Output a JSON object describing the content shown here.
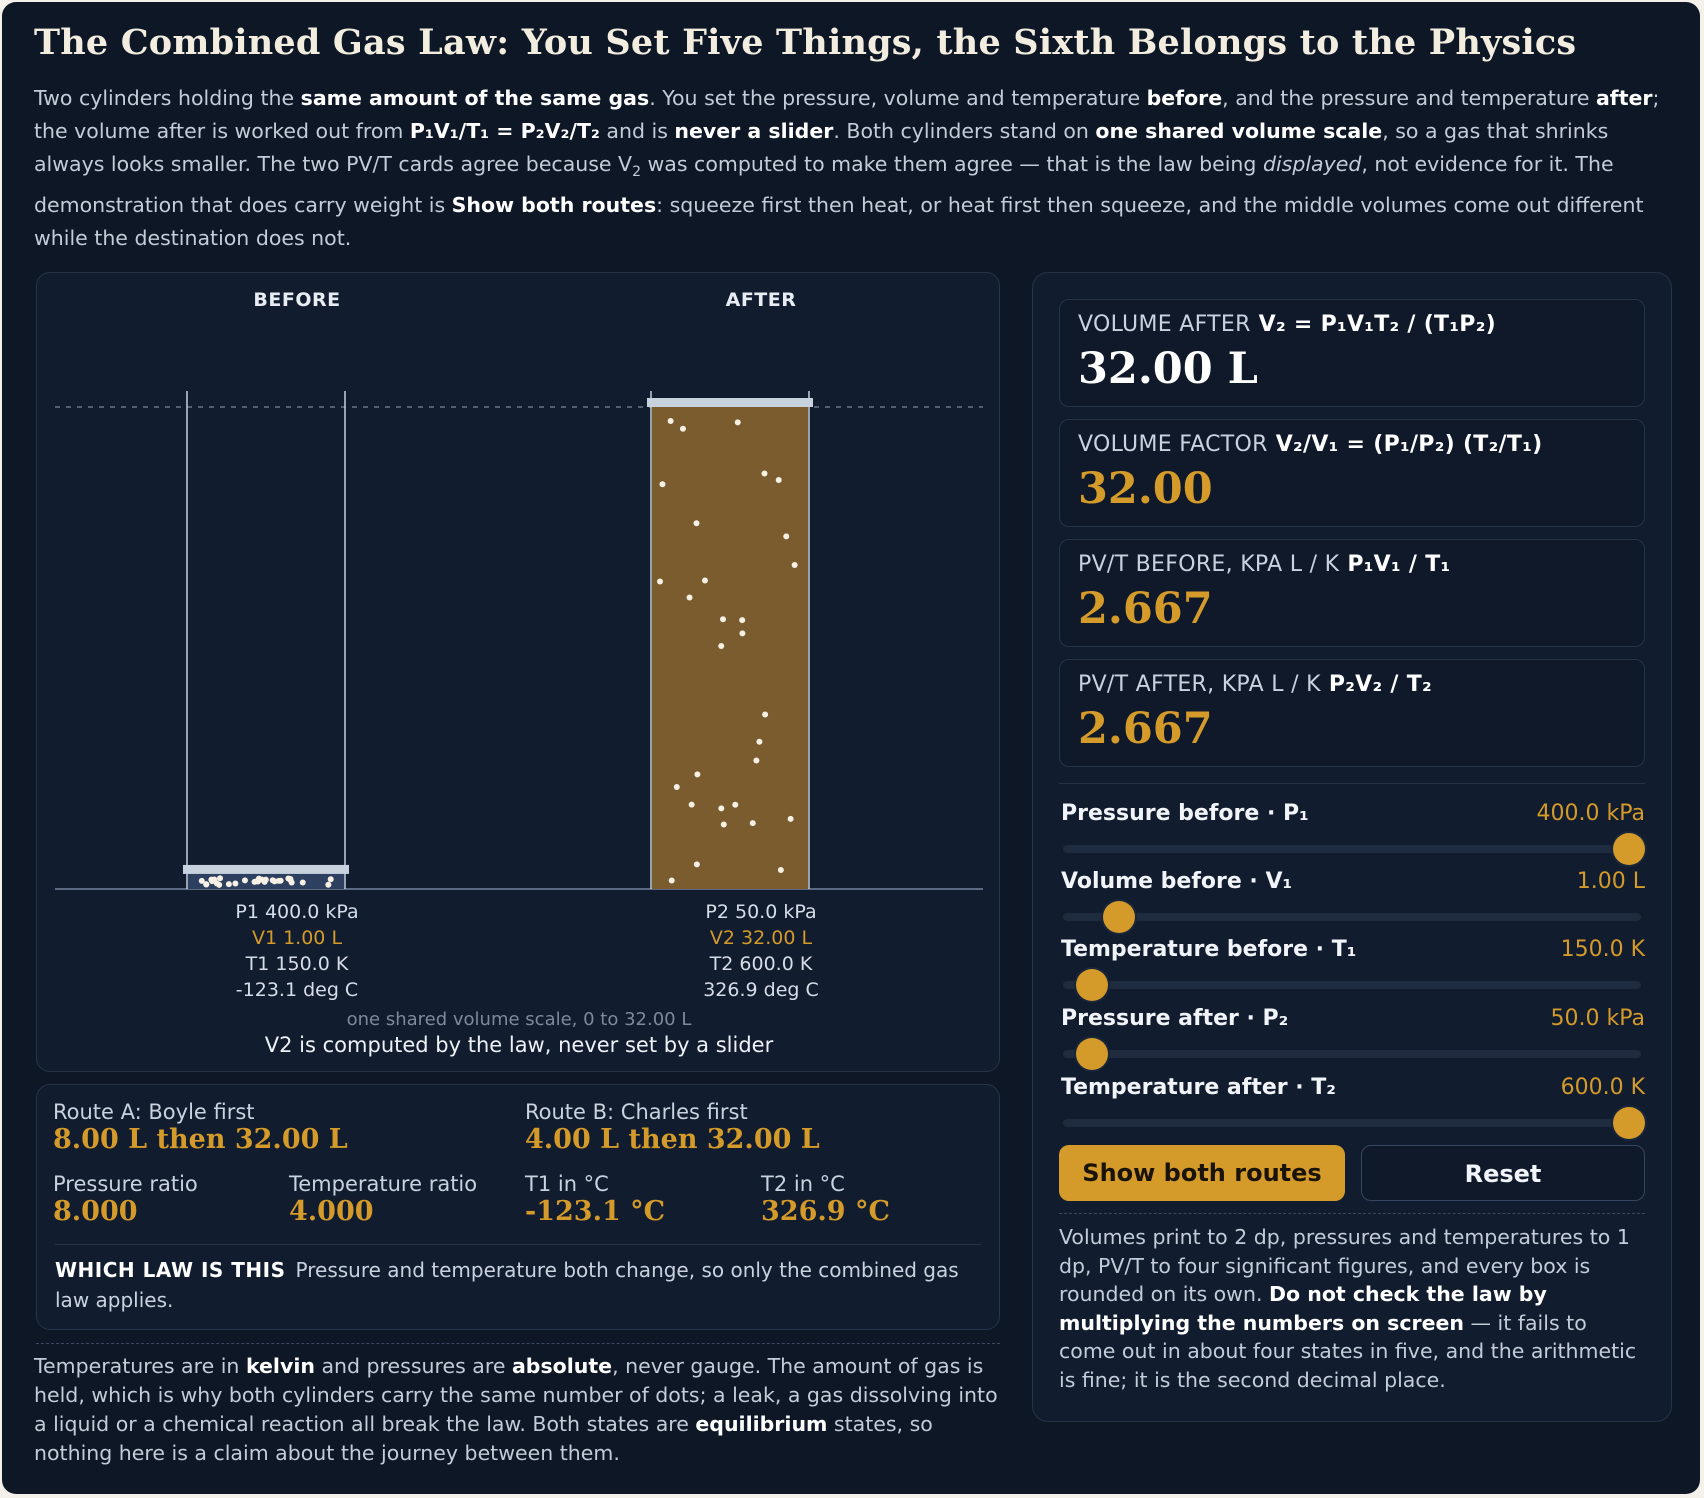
{
  "title": "The Combined Gas Law: You Set Five Things, the Sixth Belongs to the Physics",
  "intro": {
    "t1": "Two cylinders holding the ",
    "b1": "same amount of the same gas",
    "t2": ". You set the pressure, volume and temperature ",
    "b2": "before",
    "t3": ", and the pressure and temperature ",
    "b3": "after",
    "t4": "; the volume after is worked out from ",
    "formula": "P₁V₁/T₁ = P₂V₂/T₂",
    "t5": " and is ",
    "b4": "never a slider",
    "t6": ". Both cylinders stand on ",
    "b5": "one shared volume scale",
    "t7": ", so a gas that shrinks always looks smaller. The two PV/T cards agree because V",
    "sub2": "2",
    "t8": " was computed to make them agree — that is the law being ",
    "i1": "displayed",
    "t9": ", not evidence for it. The demonstration that does carry weight is ",
    "b6": "Show both routes",
    "t10": ": squeeze first then heat, or heat first then squeeze, and the middle volumes come out different while the destination does not."
  },
  "stage": {
    "before_label": "BEFORE",
    "after_label": "AFTER",
    "before": {
      "p": "P1 400.0 kPa",
      "v": "V1 1.00 L",
      "t": "T1 150.0 K",
      "c": "-123.1 deg C",
      "volume_L": 1.0,
      "particles": 30
    },
    "after": {
      "p": "P2 50.0 kPa",
      "v": "V2 32.00 L",
      "t": "T2 600.0 K",
      "c": "326.9 deg C",
      "volume_L": 32.0,
      "particles": 30
    },
    "scale_max_L": 32.0,
    "scale_note": "one shared volume scale, 0 to 32.00 L",
    "never_note": "V2 is computed by the law, never set by a slider"
  },
  "routes": {
    "a_label": "Route A: Boyle first",
    "a_value": "8.00 L then 32.00 L",
    "b_label": "Route B: Charles first",
    "b_value": "4.00 L then 32.00 L",
    "pr_label": "Pressure ratio",
    "pr_value": "8.000",
    "tr_label": "Temperature ratio",
    "tr_value": "4.000",
    "t1_label": "T1 in °C",
    "t1_value": "-123.1 °C",
    "t2_label": "T2 in °C",
    "t2_value": "326.9 °C",
    "which_head": "WHICH LAW IS THIS",
    "which_text": "Pressure and temperature both change, so only the combined gas law applies."
  },
  "footer": {
    "t1": "Temperatures are in ",
    "b1": "kelvin",
    "t2": " and pressures are ",
    "b2": "absolute",
    "t3": ", never gauge. The amount of gas is held, which is why both cylinders carry the same number of dots; a leak, a gas dissolving into a liquid or a chemical reaction all break the law. Both states are ",
    "b3": "equilibrium",
    "t4": " states, so nothing here is a claim about the journey between them."
  },
  "cards": [
    {
      "title": "VOLUME AFTER",
      "formula": "V₂ = P₁V₁T₂ / (T₁P₂)",
      "value": "32.00 L",
      "style": "white"
    },
    {
      "title": "VOLUME FACTOR",
      "formula": "V₂/V₁ = (P₁/P₂) (T₂/T₁)",
      "value": "32.00",
      "style": "gold"
    },
    {
      "title": "PV/T BEFORE, KPA L / K",
      "formula": "P₁V₁ / T₁",
      "value": "2.667",
      "style": "gold"
    },
    {
      "title": "PV/T AFTER, KPA L / K",
      "formula": "P₂V₂ / T₂",
      "value": "2.667",
      "style": "gold"
    }
  ],
  "sliders": [
    {
      "label": "Pressure before · P₁",
      "value": "400.0 kPa",
      "level": 1.0
    },
    {
      "label": "Volume before · V₁",
      "value": "1.00 L",
      "level": 0.08
    },
    {
      "label": "Temperature before · T₁",
      "value": "150.0 K",
      "level": 0.03
    },
    {
      "label": "Pressure after · P₂",
      "value": "50.0 kPa",
      "level": 0.03
    },
    {
      "label": "Temperature after · T₂",
      "value": "600.0 K",
      "level": 1.0
    }
  ],
  "buttons": {
    "routes": "Show both routes",
    "reset": "Reset"
  },
  "side_note": {
    "t1": "Volumes print to 2 dp, pressures and temperatures to 1 dp, PV/T to four significant figures, and every box is rounded on its own. ",
    "b1": "Do not check the law by multiplying the numbers on screen",
    "t2": " — it fails to come out in about four states in five, and the arithmetic is fine; it is the second decimal place."
  },
  "colors": {
    "accent": "#d49a2a",
    "gas_fill": "#7a5c2e",
    "background": "#0d1726"
  }
}
